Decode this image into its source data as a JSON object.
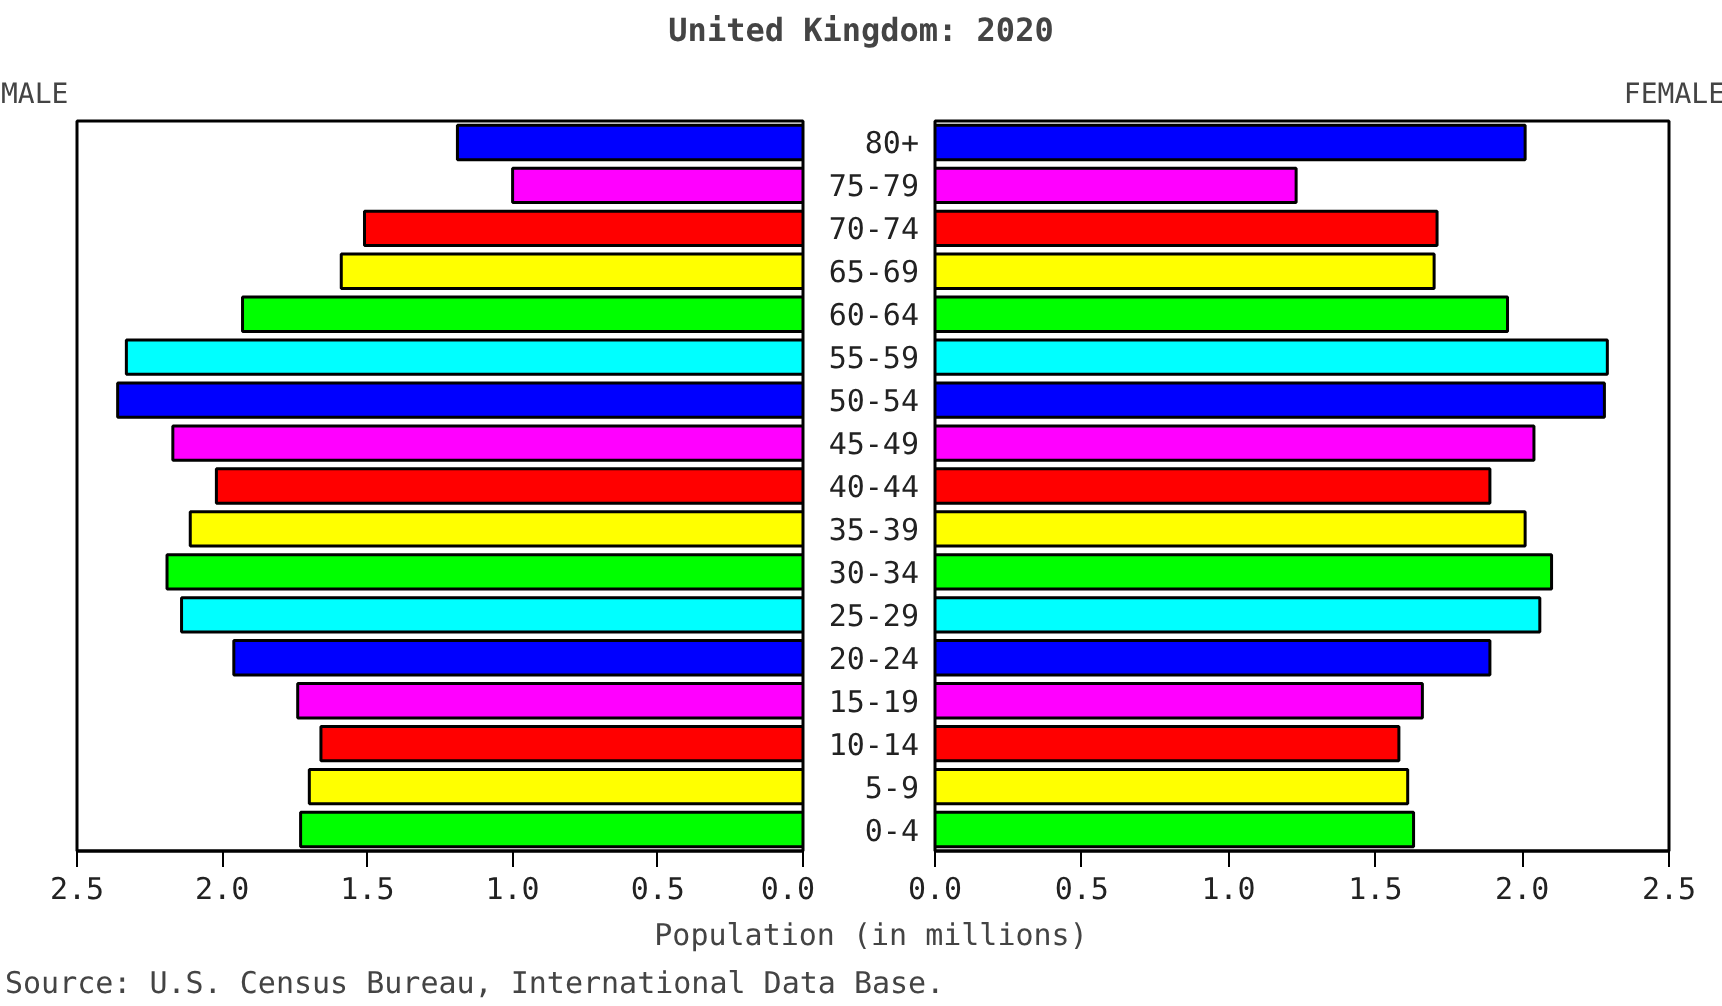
{
  "chart_data": [
    {
      "type": "bar",
      "orientation": "horizontal",
      "title": "United Kingdom: 2020",
      "subtitle": "MALE",
      "xlabel": "Population (in millions)",
      "annotations": [
        "Source: U.S. Census Bureau, International Data Base."
      ],
      "tick_labels": "x",
      "categories": [
        null,
        null,
        null,
        null,
        null,
        null,
        null,
        null,
        null,
        null,
        null,
        null,
        null,
        null,
        null,
        null,
        null
      ],
      "values": [
        1.19,
        1.0,
        1.51,
        1.59,
        1.93,
        2.33,
        2.36,
        2.17,
        2.02,
        2.11,
        2.19,
        2.14,
        1.96,
        1.74,
        1.66,
        1.7,
        1.73
      ],
      "colors": [
        "#0000ff",
        "#ff00ff",
        "#ff0000",
        "#ffff00",
        "#00ff00",
        "#00ffff",
        "#0000ff",
        "#ff00ff",
        "#ff0000",
        "#ffff00",
        "#00ff00",
        "#00ffff",
        "#0000ff",
        "#ff00ff",
        "#ff0000",
        "#ffff00",
        "#00ff00"
      ],
      "xlim": [
        2.5,
        0
      ],
      "xticks": [
        2.5,
        {
          "value": 2,
          "label": "2.0"
        },
        1.5,
        {
          "value": 1,
          "label": "1.0"
        },
        0.5,
        {
          "value": 0,
          "label": "0.0"
        }
      ],
      "grid": false
    },
    {
      "type": "bar",
      "orientation": "horizontal",
      "subtitle": "FEMALE",
      "categories": [
        "80+",
        "75-79",
        "70-74",
        "65-69",
        "60-64",
        "55-59",
        "50-54",
        "45-49",
        "40-44",
        "35-39",
        "30-34",
        "25-29",
        "20-24",
        "15-19",
        "10-14",
        "5-9",
        "0-4"
      ],
      "values": [
        2.01,
        1.23,
        1.71,
        1.7,
        1.95,
        2.29,
        2.28,
        2.04,
        1.89,
        2.01,
        2.1,
        2.06,
        1.89,
        1.66,
        1.58,
        1.61,
        1.63
      ],
      "colors": [
        "#0000ff",
        "#ff00ff",
        "#ff0000",
        "#ffff00",
        "#00ff00",
        "#00ffff",
        "#0000ff",
        "#ff00ff",
        "#ff0000",
        "#ffff00",
        "#00ff00",
        "#00ffff",
        "#0000ff",
        "#ff00ff",
        "#ff0000",
        "#ffff00",
        "#00ff00"
      ],
      "xlim": [
        0,
        2.5
      ],
      "xticks": [
        {
          "value": 0,
          "label": "0.0"
        },
        0.5,
        {
          "value": 1,
          "label": "1.0"
        },
        1.5,
        {
          "value": 2,
          "label": "2.0"
        },
        2.5
      ],
      "grid": false
    }
  ]
}
